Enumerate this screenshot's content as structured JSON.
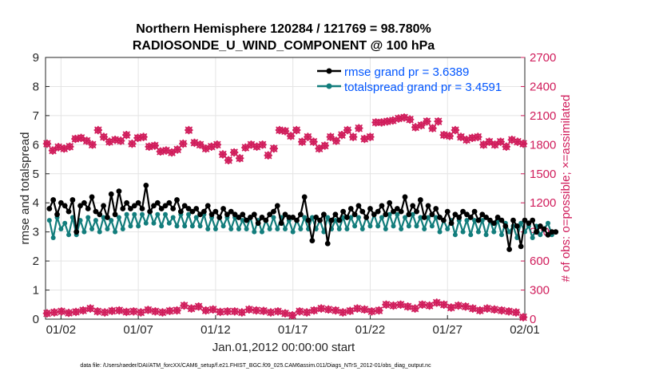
{
  "chart_data": {
    "type": "line",
    "title": [
      "Northern Hemisphere 120284 / 121769 = 98.780%",
      "RADIOSONDE_U_WIND_COMPONENT @ 100 hPa"
    ],
    "xlabel": "Jan.01,2012 00:00:00 start",
    "ylabel_left": "rmse and totalspread",
    "ylabel_right": "# of obs: o=possible; ×=assimilated",
    "ylim_left": [
      0,
      9
    ],
    "ylim_right": [
      0,
      2700
    ],
    "xlim_days": [
      0,
      31
    ],
    "yticks_left": [
      "0",
      "1",
      "2",
      "3",
      "4",
      "5",
      "6",
      "7",
      "8",
      "9"
    ],
    "yticks_right": [
      "0",
      "300",
      "600",
      "900",
      "1200",
      "1500",
      "1800",
      "2100",
      "2400",
      "2700"
    ],
    "xticks": [
      {
        "day": 1,
        "label": "01/02"
      },
      {
        "day": 6,
        "label": "01/07"
      },
      {
        "day": 11,
        "label": "01/12"
      },
      {
        "day": 16,
        "label": "01/17"
      },
      {
        "day": 21,
        "label": "01/22"
      },
      {
        "day": 26,
        "label": "01/27"
      },
      {
        "day": 31,
        "label": "02/01"
      }
    ],
    "grid": true,
    "legend_location": "top-right",
    "series": [
      {
        "name": "rmse",
        "legend": "rmse grand pr = 3.6389",
        "color": "#000000",
        "axis": "left",
        "x_start": 0.25,
        "x_step": 0.25,
        "values": [
          3.8,
          4.1,
          3.6,
          4.0,
          3.9,
          3.7,
          4.1,
          3.0,
          3.9,
          4.0,
          3.8,
          4.2,
          3.7,
          3.6,
          3.9,
          3.5,
          4.3,
          3.6,
          4.4,
          3.8,
          4.0,
          3.8,
          3.9,
          4.0,
          3.8,
          4.6,
          3.7,
          3.9,
          4.0,
          3.8,
          3.9,
          4.0,
          3.8,
          4.1,
          3.7,
          3.9,
          3.8,
          3.7,
          3.8,
          3.6,
          3.7,
          3.9,
          3.6,
          3.7,
          3.5,
          3.8,
          3.6,
          3.7,
          3.6,
          3.5,
          3.6,
          3.4,
          3.5,
          3.6,
          3.3,
          3.5,
          3.4,
          3.6,
          3.7,
          3.9,
          3.3,
          3.6,
          3.5,
          3.5,
          3.4,
          3.6,
          4.2,
          3.4,
          2.7,
          3.5,
          3.4,
          3.6,
          2.6,
          3.4,
          3.6,
          3.4,
          3.7,
          3.5,
          3.8,
          3.6,
          3.9,
          3.7,
          3.5,
          3.8,
          3.6,
          3.7,
          3.9,
          3.6,
          4.0,
          3.7,
          3.8,
          3.7,
          4.2,
          3.6,
          3.9,
          3.7,
          4.1,
          3.5,
          3.9,
          3.6,
          3.8,
          3.5,
          3.4,
          3.7,
          3.3,
          3.6,
          3.5,
          3.7,
          3.6,
          3.5,
          3.7,
          3.4,
          3.6,
          3.5,
          3.4,
          3.3,
          3.5,
          3.4,
          3.2,
          2.4,
          3.4,
          3.2,
          2.5,
          3.4,
          3.3,
          3.4,
          3.0,
          3.2,
          3.1,
          2.9,
          3.0,
          3.0
        ],
        "partial_last": 3
      },
      {
        "name": "totalspread",
        "legend": "totalspread grand pr = 3.4591",
        "color": "#127d7c",
        "axis": "left",
        "x_start": 0.25,
        "x_step": 0.25,
        "values": [
          3.4,
          2.8,
          3.5,
          3.1,
          3.3,
          2.9,
          3.5,
          2.9,
          3.4,
          3.0,
          3.5,
          3.1,
          3.4,
          3.0,
          3.5,
          3.1,
          3.4,
          3.0,
          3.5,
          3.1,
          3.6,
          3.2,
          3.6,
          3.2,
          3.6,
          3.3,
          3.7,
          3.3,
          3.6,
          3.2,
          3.6,
          3.3,
          3.5,
          3.2,
          3.6,
          3.2,
          3.6,
          3.2,
          3.5,
          3.2,
          3.6,
          3.1,
          3.5,
          3.1,
          3.5,
          3.2,
          3.5,
          3.1,
          3.5,
          3.1,
          3.4,
          3.1,
          3.5,
          3.0,
          3.4,
          3.0,
          3.4,
          3.1,
          3.5,
          3.1,
          3.5,
          3.1,
          3.4,
          3.0,
          3.4,
          3.1,
          3.5,
          3.1,
          3.5,
          3.1,
          3.4,
          3.0,
          3.5,
          3.1,
          3.4,
          3.1,
          3.5,
          3.1,
          3.5,
          3.2,
          3.5,
          3.1,
          3.5,
          3.2,
          3.6,
          3.2,
          3.5,
          3.1,
          3.6,
          3.2,
          3.6,
          3.1,
          3.5,
          3.2,
          3.6,
          3.2,
          3.5,
          3.1,
          3.5,
          3.2,
          3.5,
          3.0,
          3.4,
          3.1,
          3.4,
          2.9,
          3.4,
          3.0,
          3.4,
          2.9,
          3.4,
          3.0,
          3.4,
          2.9,
          3.4,
          3.0,
          3.4,
          2.9,
          3.3,
          3.0,
          3.2,
          2.8,
          3.3,
          3.0,
          3.2,
          2.8,
          3.2,
          2.9,
          3.1,
          3.3,
          2.9
        ]
      },
      {
        "name": "obs possible",
        "color": "#d01c5b",
        "axis": "right",
        "marker": "o",
        "x_start": 0.25,
        "x_step": 0.25,
        "values": [
          1810,
          1740,
          1775,
          1760,
          1780,
          1860,
          1870,
          1840,
          1800,
          1950,
          1880,
          1830,
          1850,
          1840,
          1900,
          1810,
          1870,
          1880,
          1780,
          1790,
          1730,
          1740,
          1720,
          1750,
          1810,
          1950,
          1820,
          1800,
          1760,
          1780,
          1800,
          1700,
          1640,
          1720,
          1660,
          1770,
          1800,
          1780,
          1800,
          1690,
          1760,
          1950,
          1940,
          1890,
          1950,
          1830,
          1880,
          1830,
          1760,
          1790,
          1880,
          1840,
          1900,
          1950,
          1880,
          1970,
          1860,
          1880,
          2030,
          2030,
          2040,
          2050,
          2070,
          2080,
          2060,
          1980,
          2000,
          2040,
          1970,
          2040,
          1900,
          1890,
          1950,
          1880,
          1850,
          1870,
          1880,
          1800,
          1830,
          1800,
          1830,
          1780,
          1850,
          1830,
          1810
        ],
        "note": "plotted at alternating 0.25/0.5 day spacing across the month"
      },
      {
        "name": "obs assimilated",
        "color": "#d01c5b",
        "axis": "right",
        "marker": "x",
        "values_note": "overlaps obs possible series"
      },
      {
        "name": "obs low",
        "color": "#d01c5b",
        "axis": "right",
        "marker": "o",
        "values": [
          60,
          70,
          80,
          65,
          75,
          90,
          110,
          80,
          70,
          85,
          90,
          75,
          80,
          70,
          95,
          80,
          70,
          85,
          90,
          140,
          110,
          130,
          90,
          100,
          75,
          80,
          80,
          70,
          100,
          90,
          85,
          70,
          80,
          60,
          40,
          80,
          70,
          90,
          110,
          100,
          90,
          70,
          85,
          110,
          100,
          80,
          90,
          150,
          140,
          150,
          130,
          110,
          150,
          140,
          170,
          150,
          120,
          140,
          130,
          110,
          90,
          110,
          100,
          90,
          80,
          70,
          20
        ]
      }
    ]
  },
  "footnote": "data file: /Users/raeder/DAI/ATM_forcXX/CAM6_setup/f.e21.FHIST_BGC.f09_025.CAM6assim.011/Diags_NTrS_2012-01/obs_diag_output.nc"
}
